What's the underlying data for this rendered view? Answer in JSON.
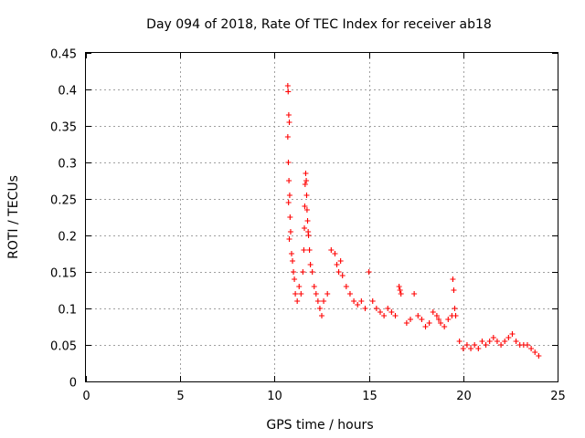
{
  "chart_data": {
    "type": "scatter",
    "title": "Day 094 of 2018, Rate Of TEC Index for receiver ab18",
    "xlabel": "GPS time / hours",
    "ylabel": "ROTI / TECUs",
    "xlim": [
      0,
      25
    ],
    "ylim": [
      0,
      0.45
    ],
    "xticks": [
      "0",
      "5",
      "10",
      "15",
      "20",
      "25"
    ],
    "yticks": [
      "0",
      "0.05",
      "0.1",
      "0.15",
      "0.2",
      "0.25",
      "0.3",
      "0.35",
      "0.4",
      "0.45"
    ],
    "grid": true,
    "marker": "+",
    "color": "#ff0000",
    "series": [
      {
        "x": [
          10.7,
          10.72,
          10.75,
          10.78,
          10.7,
          10.73,
          10.76,
          10.8,
          10.74,
          10.82,
          10.85,
          10.78,
          10.9,
          10.95,
          11.0,
          11.05,
          11.1,
          11.2,
          11.3,
          11.4,
          11.5,
          11.55,
          11.58,
          11.6,
          11.62,
          11.65,
          11.68,
          11.7,
          11.72,
          11.75,
          11.78,
          11.8,
          11.85,
          11.9,
          12.0,
          12.1,
          12.2,
          12.3,
          12.4,
          12.5,
          12.6,
          12.8,
          13.0,
          13.2,
          13.3,
          13.4,
          13.5,
          13.6,
          13.8,
          14.0,
          14.2,
          14.4,
          14.6,
          14.8,
          15.0,
          15.2,
          15.4,
          15.6,
          15.8,
          16.0,
          16.2,
          16.4,
          16.6,
          16.65,
          16.7,
          17.0,
          17.2,
          17.4,
          17.6,
          17.8,
          18.0,
          18.2,
          18.4,
          18.6,
          18.7,
          18.8,
          19.0,
          19.2,
          19.4,
          19.45,
          19.5,
          19.55,
          19.6,
          19.8,
          20.0,
          20.2,
          20.4,
          20.6,
          20.8,
          21.0,
          21.2,
          21.4,
          21.6,
          21.8,
          22.0,
          22.2,
          22.4,
          22.6,
          22.8,
          23.0,
          23.2,
          23.4,
          23.6,
          23.8,
          24.0
        ],
        "y": [
          0.405,
          0.397,
          0.365,
          0.355,
          0.335,
          0.3,
          0.275,
          0.255,
          0.245,
          0.225,
          0.205,
          0.195,
          0.175,
          0.165,
          0.15,
          0.14,
          0.12,
          0.11,
          0.13,
          0.12,
          0.15,
          0.18,
          0.21,
          0.24,
          0.27,
          0.285,
          0.275,
          0.255,
          0.235,
          0.22,
          0.205,
          0.2,
          0.18,
          0.16,
          0.15,
          0.13,
          0.12,
          0.11,
          0.1,
          0.09,
          0.11,
          0.12,
          0.18,
          0.175,
          0.16,
          0.15,
          0.165,
          0.145,
          0.13,
          0.12,
          0.11,
          0.105,
          0.11,
          0.1,
          0.15,
          0.11,
          0.1,
          0.095,
          0.09,
          0.1,
          0.095,
          0.09,
          0.13,
          0.125,
          0.12,
          0.08,
          0.085,
          0.12,
          0.09,
          0.085,
          0.075,
          0.08,
          0.095,
          0.09,
          0.085,
          0.08,
          0.075,
          0.085,
          0.09,
          0.14,
          0.125,
          0.1,
          0.09,
          0.055,
          0.045,
          0.05,
          0.045,
          0.05,
          0.045,
          0.055,
          0.05,
          0.055,
          0.06,
          0.055,
          0.05,
          0.055,
          0.06,
          0.065,
          0.055,
          0.05,
          0.05,
          0.05,
          0.045,
          0.04,
          0.035
        ]
      }
    ]
  }
}
